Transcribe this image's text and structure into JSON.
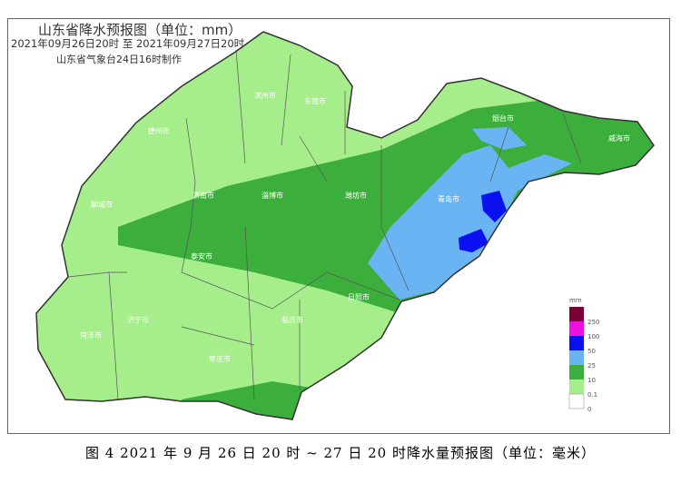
{
  "map": {
    "title": "山东省降水预报图（单位：mm）",
    "period": "2021年09月26日20时  至  2021年09月27日20时",
    "maker": "山东省气象台24日16时制作",
    "cities": [
      "滨州市",
      "东营市",
      "德州市",
      "聊城市",
      "济南市",
      "淄博市",
      "潍坊市",
      "烟台市",
      "威海市",
      "青岛市",
      "泰安市",
      "日照市",
      "济宁市",
      "临沂市",
      "菏泽市",
      "枣庄市"
    ],
    "legend": {
      "unit": "mm",
      "thresholds": [
        "250",
        "100",
        "50",
        "25",
        "10",
        "0.1",
        "0"
      ],
      "colors": [
        "#7a0035",
        "#ee10e0",
        "#0a10f0",
        "#6ab4f4",
        "#3cae3c",
        "#a6ee8c",
        "#ffffff"
      ]
    }
  },
  "caption": "图 4   2021 年 9 月 26 日 20 时 ~ 27 日 20 时降水量预报图（单位：毫米）"
}
